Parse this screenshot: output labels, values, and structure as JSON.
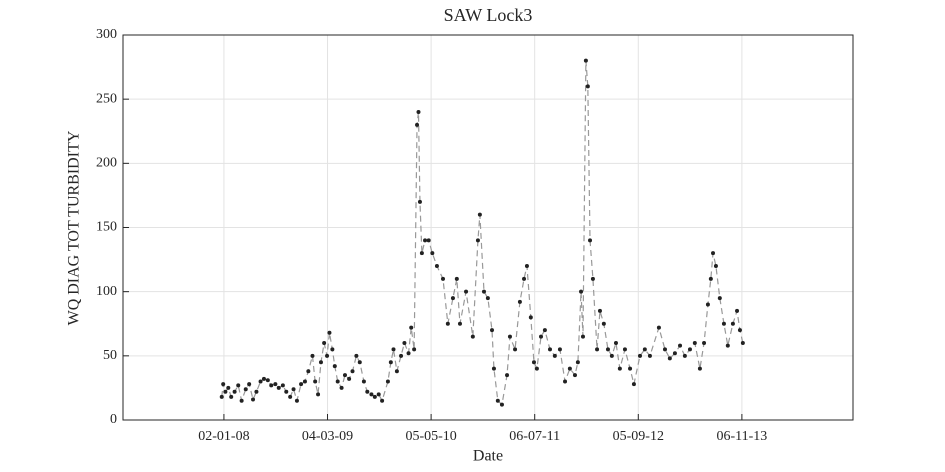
{
  "chart_data": {
    "type": "line",
    "title": "SAW Lock3",
    "x_label": "Date",
    "y_label": "WQ DIAG TOT TURBIDITY",
    "x": [
      "2007-12-24",
      "2007-12-30",
      "2008-01-08",
      "2008-01-20",
      "2008-02-01",
      "2008-02-15",
      "2008-03-01",
      "2008-03-15",
      "2008-04-01",
      "2008-04-15",
      "2008-05-01",
      "2008-05-15",
      "2008-06-01",
      "2008-06-15",
      "2008-07-01",
      "2008-07-15",
      "2008-08-01",
      "2008-08-15",
      "2008-09-01",
      "2008-09-15",
      "2008-10-01",
      "2008-10-15",
      "2008-10-29",
      "2008-11-15",
      "2008-12-01",
      "2008-12-15",
      "2009-01-01",
      "2009-01-12",
      "2009-01-24",
      "2009-02-05",
      "2009-02-18",
      "2009-03-02",
      "2009-03-12",
      "2009-03-24",
      "2009-04-03",
      "2009-04-15",
      "2009-05-01",
      "2009-05-15",
      "2009-06-01",
      "2009-06-15",
      "2009-07-01",
      "2009-07-15",
      "2009-08-01",
      "2009-08-15",
      "2009-09-01",
      "2009-09-15",
      "2009-10-01",
      "2009-10-15",
      "2009-11-08",
      "2009-11-20",
      "2009-12-01",
      "2009-12-15",
      "2010-01-01",
      "2010-01-15",
      "2010-02-01",
      "2010-02-12",
      "2010-02-24",
      "2010-03-08",
      "2010-03-14",
      "2010-03-20",
      "2010-03-28",
      "2010-04-10",
      "2010-04-25",
      "2010-05-10",
      "2010-05-29",
      "2010-06-23",
      "2010-07-13",
      "2010-08-03",
      "2010-08-19",
      "2010-09-01",
      "2010-09-26",
      "2010-10-24",
      "2010-11-14",
      "2010-11-22",
      "2010-12-09",
      "2010-12-25",
      "2011-01-11",
      "2011-01-19",
      "2011-02-04",
      "2011-02-21",
      "2011-03-14",
      "2011-03-26",
      "2011-04-16",
      "2011-05-06",
      "2011-05-23",
      "2011-06-04",
      "2011-06-20",
      "2011-07-03",
      "2011-07-15",
      "2011-08-01",
      "2011-08-17",
      "2011-09-07",
      "2011-09-27",
      "2011-10-18",
      "2011-11-08",
      "2011-11-28",
      "2011-12-19",
      "2011-12-31",
      "2012-01-13",
      "2012-01-21",
      "2012-02-02",
      "2012-02-10",
      "2012-02-19",
      "2012-03-02",
      "2012-03-19",
      "2012-03-31",
      "2012-04-16",
      "2012-05-03",
      "2012-05-19",
      "2012-06-05",
      "2012-06-21",
      "2012-07-12",
      "2012-08-02",
      "2012-08-18",
      "2012-09-12",
      "2012-10-02",
      "2012-10-23",
      "2012-11-29",
      "2012-12-24",
      "2013-01-13",
      "2013-02-03",
      "2013-02-24",
      "2013-03-16",
      "2013-04-06",
      "2013-04-26",
      "2013-05-17",
      "2013-06-03",
      "2013-06-19",
      "2013-07-01",
      "2013-07-10",
      "2013-07-22",
      "2013-08-07",
      "2013-08-24",
      "2013-09-09",
      "2013-09-30",
      "2013-10-17",
      "2013-10-29",
      "2013-11-10"
    ],
    "values": [
      18,
      28,
      22,
      25,
      18,
      22,
      27,
      15,
      24,
      28,
      16,
      22,
      30,
      32,
      31,
      27,
      28,
      25,
      27,
      22,
      18,
      24,
      15,
      28,
      30,
      38,
      50,
      30,
      20,
      45,
      60,
      50,
      68,
      55,
      42,
      30,
      25,
      35,
      32,
      38,
      50,
      45,
      30,
      22,
      20,
      18,
      20,
      15,
      30,
      45,
      55,
      38,
      50,
      60,
      52,
      72,
      55,
      230,
      240,
      170,
      130,
      140,
      140,
      130,
      120,
      110,
      75,
      95,
      110,
      75,
      100,
      65,
      140,
      160,
      100,
      95,
      70,
      40,
      15,
      12,
      35,
      65,
      55,
      92,
      110,
      120,
      80,
      45,
      40,
      65,
      70,
      55,
      50,
      55,
      30,
      40,
      35,
      45,
      100,
      65,
      280,
      260,
      140,
      110,
      55,
      85,
      75,
      55,
      50,
      60,
      40,
      55,
      40,
      28,
      50,
      55,
      50,
      72,
      55,
      48,
      52,
      58,
      50,
      55,
      60,
      40,
      60,
      90,
      110,
      130,
      120,
      95,
      75,
      58,
      75,
      85,
      70,
      60
    ],
    "color": "#222222",
    "line_color": "#999999",
    "xlim": [
      "2006-11-12",
      "2015-02-07"
    ],
    "xticks": [
      {
        "value": "2008-01-02",
        "label": "02-01-08"
      },
      {
        "value": "2009-03-04",
        "label": "04-03-09"
      },
      {
        "value": "2010-05-05",
        "label": "05-05-10"
      },
      {
        "value": "2011-07-06",
        "label": "06-07-11"
      },
      {
        "value": "2012-09-05",
        "label": "05-09-12"
      },
      {
        "value": "2013-11-06",
        "label": "06-11-13"
      }
    ],
    "ylim": [
      0,
      300
    ],
    "yticks": [
      0,
      50,
      100,
      150,
      200,
      250,
      300
    ],
    "grid": true
  }
}
